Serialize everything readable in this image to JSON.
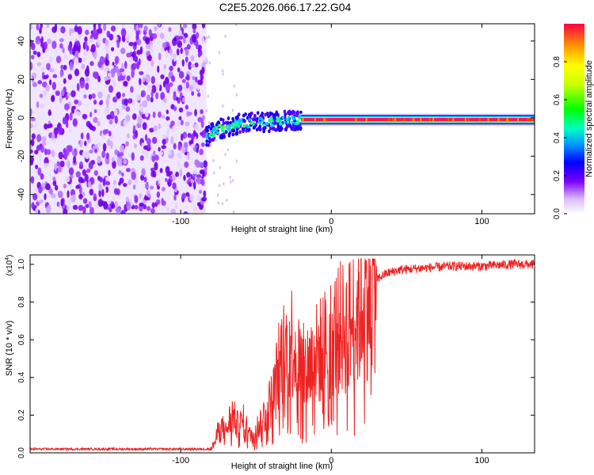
{
  "figure_title": "C2E5.2026.066.17.22.G04",
  "chart_data": [
    {
      "type": "heatmap",
      "title": "C2E5.2026.066.17.22.G04",
      "xlabel": "Height of straight line (km)",
      "ylabel": "Frequency (Hz)",
      "xlim": [
        -200,
        135
      ],
      "ylim": [
        -50,
        49
      ],
      "xticks": [
        -100,
        0,
        100
      ],
      "yticks": [
        -40,
        -20,
        0,
        20,
        40
      ],
      "colorbar": {
        "label": "Normalized spectral amplitude",
        "range": [
          0,
          1
        ],
        "ticks": [
          0.0,
          0.2,
          0.4,
          0.6,
          0.8
        ]
      },
      "regions": [
        {
          "name": "noise",
          "x_range": [
            -200,
            -83
          ],
          "freq_range": [
            -50,
            49
          ],
          "amplitude": 0.05
        },
        {
          "name": "signal-onset",
          "x_range": [
            -83,
            -20
          ],
          "freq_center": [
            [
              -83,
              -10
            ],
            [
              -75,
              -6
            ],
            [
              -60,
              -3
            ],
            [
              -40,
              -2
            ],
            [
              -20,
              -1
            ]
          ],
          "amplitude": 0.3
        },
        {
          "name": "carrier",
          "x_range": [
            -20,
            135
          ],
          "freq_center": -1,
          "amplitude": 0.95
        }
      ]
    },
    {
      "type": "line",
      "title": "",
      "xlabel": "Height of straight line (km)",
      "ylabel": "SNR (10 * v/v)",
      "y_scale_label": "(x10",
      "y_scale_exp": "4",
      "y_scale_suffix": ")",
      "xlim": [
        -200,
        135
      ],
      "ylim": [
        0,
        1.05
      ],
      "xticks": [
        -100,
        0,
        100
      ],
      "yticks": [
        0.0,
        0.2,
        0.4,
        0.6,
        0.8,
        1.0
      ],
      "series": [
        {
          "name": "SNR",
          "color": "#ee2222",
          "envelope": [
            [
              -200,
              0.02
            ],
            [
              -80,
              0.02
            ],
            [
              -77,
              0.06
            ],
            [
              -74,
              0.15
            ],
            [
              -70,
              0.11
            ],
            [
              -66,
              0.21
            ],
            [
              -62,
              0.14
            ],
            [
              -58,
              0.17
            ],
            [
              -54,
              0.09
            ],
            [
              -50,
              0.12
            ],
            [
              -46,
              0.18
            ],
            [
              -42,
              0.24
            ],
            [
              -38,
              0.32
            ],
            [
              -34,
              0.5
            ],
            [
              -30,
              0.55
            ],
            [
              -26,
              0.6
            ],
            [
              -22,
              0.5
            ],
            [
              -18,
              0.44
            ],
            [
              -14,
              0.48
            ],
            [
              -10,
              0.52
            ],
            [
              -6,
              0.55
            ],
            [
              -2,
              0.6
            ],
            [
              2,
              0.63
            ],
            [
              6,
              0.66
            ],
            [
              10,
              0.66
            ],
            [
              14,
              0.7
            ],
            [
              18,
              0.74
            ],
            [
              22,
              0.82
            ],
            [
              26,
              0.88
            ],
            [
              30,
              0.92
            ],
            [
              36,
              0.95
            ],
            [
              45,
              0.97
            ],
            [
              60,
              0.98
            ],
            [
              80,
              0.99
            ],
            [
              100,
              0.99
            ],
            [
              120,
              1.0
            ],
            [
              135,
              1.0
            ]
          ]
        }
      ]
    }
  ]
}
